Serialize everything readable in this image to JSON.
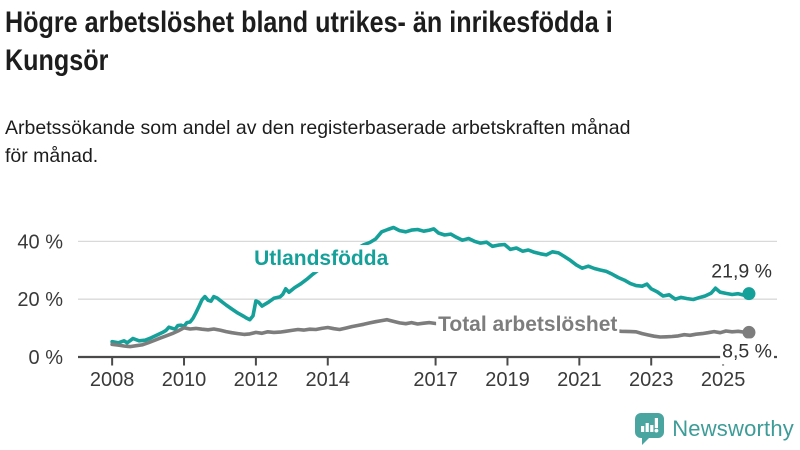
{
  "header": {
    "title_lines": [
      "Högre arbetslöshet bland utrikes- än inrikesfödda i",
      "Kungsör"
    ],
    "subtitle_lines": [
      "Arbetssökande som andel av den registerbaserade arbetskraften månad",
      "för månad."
    ]
  },
  "branding": {
    "name": "Newsworthy",
    "logo_icon": "bar-chart-speech-bubble-icon",
    "text_color": "#3d9c98",
    "icon_color": "#4aa5a1"
  },
  "chart_data": {
    "type": "line",
    "title": "Högre arbetslöshet bland utrikes- än inrikesfödda i Kungsör",
    "subtitle": "Arbetssökande som andel av den registerbaserade arbetskraften månad för månad.",
    "xlabel": "",
    "ylabel": "",
    "y_unit": "%",
    "grid": true,
    "xlim": [
      2007.05,
      2026.5
    ],
    "ylim": [
      0,
      54.3
    ],
    "y_ticks": [
      {
        "value": 0,
        "label": "0 %"
      },
      {
        "value": 20,
        "label": "20 %"
      },
      {
        "value": 40,
        "label": "40 %"
      }
    ],
    "x_ticks": [
      {
        "value": 2008,
        "label": "2008"
      },
      {
        "value": 2010,
        "label": "2010"
      },
      {
        "value": 2012,
        "label": "2012"
      },
      {
        "value": 2014,
        "label": "2014"
      },
      {
        "value": 2017,
        "label": "2017"
      },
      {
        "value": 2019,
        "label": "2019"
      },
      {
        "value": 2021,
        "label": "2021"
      },
      {
        "value": 2023,
        "label": "2023"
      },
      {
        "value": 2025,
        "label": "2025"
      }
    ],
    "colors": {
      "axis": "#4a4a4a",
      "tick_text": "#3a3a3a",
      "grid": "#d9d9d9",
      "annotation_text": "#333333"
    },
    "series": [
      {
        "name": "Utlandsfödda",
        "color": "#16a09a",
        "end_label": "21,9 %",
        "end_label_position": "above",
        "label_pos": {
          "x": 2011.95,
          "y": 31.8
        },
        "points": [
          [
            2008.0,
            5.3
          ],
          [
            2008.17,
            4.9
          ],
          [
            2008.33,
            5.6
          ],
          [
            2008.42,
            4.9
          ],
          [
            2008.58,
            6.4
          ],
          [
            2008.75,
            5.6
          ],
          [
            2008.92,
            5.8
          ],
          [
            2009.08,
            6.6
          ],
          [
            2009.25,
            7.6
          ],
          [
            2009.42,
            8.6
          ],
          [
            2009.5,
            9.2
          ],
          [
            2009.58,
            10.3
          ],
          [
            2009.75,
            9.6
          ],
          [
            2009.83,
            10.9
          ],
          [
            2009.92,
            11.0
          ],
          [
            2010.0,
            10.6
          ],
          [
            2010.08,
            11.9
          ],
          [
            2010.17,
            12.1
          ],
          [
            2010.25,
            13.4
          ],
          [
            2010.33,
            15.3
          ],
          [
            2010.42,
            17.6
          ],
          [
            2010.5,
            19.8
          ],
          [
            2010.58,
            20.9
          ],
          [
            2010.67,
            19.6
          ],
          [
            2010.75,
            19.3
          ],
          [
            2010.83,
            20.9
          ],
          [
            2010.92,
            20.4
          ],
          [
            2011.0,
            19.6
          ],
          [
            2011.17,
            18.0
          ],
          [
            2011.33,
            16.6
          ],
          [
            2011.5,
            15.2
          ],
          [
            2011.67,
            14.0
          ],
          [
            2011.75,
            13.4
          ],
          [
            2011.83,
            12.9
          ],
          [
            2011.92,
            14.2
          ],
          [
            2012.0,
            19.4
          ],
          [
            2012.08,
            18.9
          ],
          [
            2012.17,
            17.6
          ],
          [
            2012.33,
            18.8
          ],
          [
            2012.5,
            20.3
          ],
          [
            2012.67,
            20.8
          ],
          [
            2012.75,
            21.7
          ],
          [
            2012.83,
            23.6
          ],
          [
            2012.92,
            22.4
          ],
          [
            2013.08,
            24.0
          ],
          [
            2013.25,
            25.3
          ],
          [
            2013.42,
            26.9
          ],
          [
            2013.58,
            28.6
          ],
          [
            2013.75,
            30.2
          ],
          [
            2013.92,
            31.4
          ],
          [
            2014.08,
            32.7
          ],
          [
            2014.25,
            33.6
          ],
          [
            2014.33,
            33.0
          ],
          [
            2014.5,
            34.9
          ],
          [
            2014.67,
            36.3
          ],
          [
            2014.83,
            37.6
          ],
          [
            2015.0,
            38.8
          ],
          [
            2015.17,
            39.6
          ],
          [
            2015.33,
            40.8
          ],
          [
            2015.5,
            43.3
          ],
          [
            2015.67,
            44.1
          ],
          [
            2015.83,
            44.8
          ],
          [
            2016.0,
            43.7
          ],
          [
            2016.17,
            43.3
          ],
          [
            2016.33,
            43.9
          ],
          [
            2016.5,
            44.1
          ],
          [
            2016.67,
            43.5
          ],
          [
            2016.83,
            43.9
          ],
          [
            2016.95,
            44.3
          ],
          [
            2017.08,
            42.9
          ],
          [
            2017.25,
            42.2
          ],
          [
            2017.42,
            42.5
          ],
          [
            2017.58,
            41.4
          ],
          [
            2017.75,
            40.4
          ],
          [
            2017.92,
            41.0
          ],
          [
            2018.08,
            40.0
          ],
          [
            2018.25,
            39.4
          ],
          [
            2018.42,
            39.7
          ],
          [
            2018.58,
            38.3
          ],
          [
            2018.75,
            38.7
          ],
          [
            2018.92,
            38.9
          ],
          [
            2019.08,
            37.2
          ],
          [
            2019.25,
            37.7
          ],
          [
            2019.42,
            36.6
          ],
          [
            2019.58,
            37.0
          ],
          [
            2019.75,
            36.2
          ],
          [
            2019.92,
            35.7
          ],
          [
            2020.08,
            35.3
          ],
          [
            2020.25,
            36.4
          ],
          [
            2020.42,
            36.0
          ],
          [
            2020.58,
            34.8
          ],
          [
            2020.75,
            33.4
          ],
          [
            2020.92,
            31.8
          ],
          [
            2021.08,
            30.7
          ],
          [
            2021.25,
            31.4
          ],
          [
            2021.42,
            30.6
          ],
          [
            2021.58,
            30.1
          ],
          [
            2021.75,
            29.6
          ],
          [
            2021.92,
            28.6
          ],
          [
            2022.08,
            27.5
          ],
          [
            2022.25,
            26.6
          ],
          [
            2022.42,
            25.4
          ],
          [
            2022.58,
            24.7
          ],
          [
            2022.75,
            24.5
          ],
          [
            2022.88,
            25.2
          ],
          [
            2023.0,
            23.6
          ],
          [
            2023.17,
            22.5
          ],
          [
            2023.33,
            21.1
          ],
          [
            2023.5,
            21.5
          ],
          [
            2023.67,
            20.0
          ],
          [
            2023.83,
            20.6
          ],
          [
            2024.0,
            20.2
          ],
          [
            2024.17,
            19.9
          ],
          [
            2024.33,
            20.5
          ],
          [
            2024.5,
            21.1
          ],
          [
            2024.67,
            22.1
          ],
          [
            2024.79,
            23.8
          ],
          [
            2024.92,
            22.4
          ],
          [
            2025.08,
            22.0
          ],
          [
            2025.25,
            21.6
          ],
          [
            2025.42,
            21.9
          ],
          [
            2025.58,
            21.4
          ],
          [
            2025.72,
            21.9
          ]
        ]
      },
      {
        "name": "Total arbetslöshet",
        "color": "#7d7d7d",
        "end_label": "8,5 %",
        "end_label_position": "below",
        "label_pos": {
          "x": 2017.07,
          "y": 9.0
        },
        "points": [
          [
            2008.0,
            4.4
          ],
          [
            2008.17,
            4.1
          ],
          [
            2008.33,
            3.8
          ],
          [
            2008.5,
            3.6
          ],
          [
            2008.67,
            3.9
          ],
          [
            2008.83,
            4.2
          ],
          [
            2009.0,
            4.9
          ],
          [
            2009.17,
            5.7
          ],
          [
            2009.33,
            6.5
          ],
          [
            2009.5,
            7.3
          ],
          [
            2009.67,
            8.1
          ],
          [
            2009.83,
            9.0
          ],
          [
            2010.0,
            10.1
          ],
          [
            2010.17,
            9.7
          ],
          [
            2010.33,
            9.9
          ],
          [
            2010.5,
            9.6
          ],
          [
            2010.67,
            9.4
          ],
          [
            2010.83,
            9.7
          ],
          [
            2011.0,
            9.3
          ],
          [
            2011.17,
            8.8
          ],
          [
            2011.33,
            8.4
          ],
          [
            2011.5,
            8.1
          ],
          [
            2011.67,
            7.8
          ],
          [
            2011.83,
            8.0
          ],
          [
            2012.0,
            8.5
          ],
          [
            2012.17,
            8.2
          ],
          [
            2012.33,
            8.7
          ],
          [
            2012.5,
            8.5
          ],
          [
            2012.67,
            8.6
          ],
          [
            2012.83,
            8.9
          ],
          [
            2013.0,
            9.2
          ],
          [
            2013.17,
            9.5
          ],
          [
            2013.33,
            9.3
          ],
          [
            2013.5,
            9.6
          ],
          [
            2013.67,
            9.5
          ],
          [
            2013.83,
            9.9
          ],
          [
            2014.0,
            10.2
          ],
          [
            2014.17,
            9.8
          ],
          [
            2014.33,
            9.5
          ],
          [
            2014.5,
            10.0
          ],
          [
            2014.67,
            10.5
          ],
          [
            2014.83,
            10.9
          ],
          [
            2015.0,
            11.3
          ],
          [
            2015.17,
            11.8
          ],
          [
            2015.33,
            12.2
          ],
          [
            2015.5,
            12.6
          ],
          [
            2015.65,
            12.9
          ],
          [
            2015.83,
            12.3
          ],
          [
            2016.0,
            11.8
          ],
          [
            2016.17,
            11.5
          ],
          [
            2016.33,
            11.9
          ],
          [
            2016.5,
            11.4
          ],
          [
            2016.67,
            11.7
          ],
          [
            2016.83,
            11.9
          ],
          [
            2017.0,
            11.6
          ],
          [
            2017.25,
            11.3
          ],
          [
            2017.5,
            11.1
          ],
          [
            2017.75,
            10.8
          ],
          [
            2018.0,
            10.6
          ],
          [
            2018.25,
            10.3
          ],
          [
            2018.5,
            10.1
          ],
          [
            2018.75,
            9.9
          ],
          [
            2019.0,
            9.8
          ],
          [
            2019.25,
            9.6
          ],
          [
            2019.5,
            9.5
          ],
          [
            2019.75,
            9.7
          ],
          [
            2020.0,
            10.2
          ],
          [
            2020.25,
            11.0
          ],
          [
            2020.42,
            11.4
          ],
          [
            2020.67,
            11.1
          ],
          [
            2020.92,
            10.6
          ],
          [
            2021.17,
            10.1
          ],
          [
            2021.42,
            9.7
          ],
          [
            2021.67,
            9.4
          ],
          [
            2021.92,
            9.1
          ],
          [
            2022.17,
            8.9
          ],
          [
            2022.42,
            8.8
          ],
          [
            2022.58,
            8.7
          ],
          [
            2022.75,
            8.1
          ],
          [
            2022.92,
            7.6
          ],
          [
            2023.08,
            7.2
          ],
          [
            2023.25,
            6.9
          ],
          [
            2023.42,
            7.0
          ],
          [
            2023.58,
            7.1
          ],
          [
            2023.75,
            7.3
          ],
          [
            2023.92,
            7.7
          ],
          [
            2024.08,
            7.5
          ],
          [
            2024.25,
            7.9
          ],
          [
            2024.42,
            8.1
          ],
          [
            2024.58,
            8.4
          ],
          [
            2024.75,
            8.8
          ],
          [
            2024.92,
            8.4
          ],
          [
            2025.08,
            9.0
          ],
          [
            2025.25,
            8.7
          ],
          [
            2025.42,
            8.9
          ],
          [
            2025.58,
            8.6
          ],
          [
            2025.72,
            8.5
          ]
        ]
      }
    ]
  }
}
